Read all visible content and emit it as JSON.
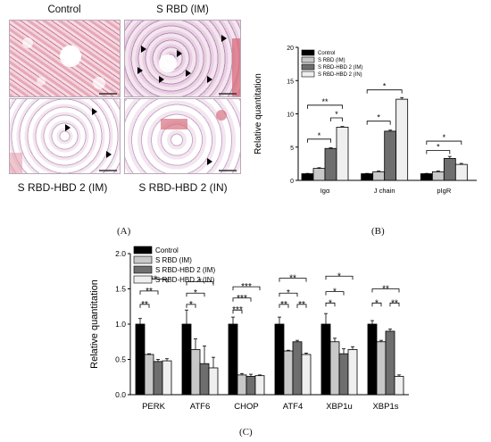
{
  "panel_a": {
    "label": "(A)",
    "images": [
      {
        "title": "Control",
        "arrows": 0
      },
      {
        "title": "S RBD (IM)",
        "arrows": 7
      },
      {
        "title": "S RBD-HBD 2 (IM)",
        "arrows": 3
      },
      {
        "title": "S RBD-HBD 2 (IN)",
        "arrows": 1
      }
    ]
  },
  "panel_b": {
    "label": "(B)"
  },
  "panel_c": {
    "label": "(C)"
  },
  "chart_data": [
    {
      "id": "B",
      "type": "bar",
      "ylabel": "Relative quantitation",
      "xlabel": "",
      "ylim": [
        0,
        20
      ],
      "yticks": [
        "0",
        "5",
        "10",
        "15",
        "20"
      ],
      "categories": [
        "Igα",
        "J chain",
        "pIgR"
      ],
      "series": [
        {
          "name": "Control",
          "color": "#000000",
          "values": [
            1.0,
            1.0,
            1.0
          ],
          "errors": [
            0.05,
            0.05,
            0.05
          ]
        },
        {
          "name": "S RBD (IM)",
          "color": "#c8c8c8",
          "values": [
            1.8,
            1.3,
            1.3
          ],
          "errors": [
            0.1,
            0.1,
            0.1
          ]
        },
        {
          "name": "S RBD-HBD 2 (IM)",
          "color": "#6e6e6e",
          "values": [
            4.8,
            7.4,
            3.3
          ],
          "errors": [
            0.1,
            0.15,
            0.3
          ]
        },
        {
          "name": "S RBD-HBD 2 (IN)",
          "color": "#efefef",
          "values": [
            8.0,
            12.2,
            2.4
          ],
          "errors": [
            0.1,
            0.25,
            0.15
          ]
        }
      ],
      "significance": [
        {
          "cat": 0,
          "from": 0,
          "to": 2,
          "label": "*",
          "y": 6.2
        },
        {
          "cat": 0,
          "from": 2,
          "to": 3,
          "label": "*",
          "y": 9.4
        },
        {
          "cat": 0,
          "from": 0,
          "to": 3,
          "label": "**",
          "y": 11.3
        },
        {
          "cat": 1,
          "from": 0,
          "to": 2,
          "label": "*",
          "y": 8.9
        },
        {
          "cat": 1,
          "from": 0,
          "to": 3,
          "label": "*",
          "y": 13.6
        },
        {
          "cat": 2,
          "from": 0,
          "to": 2,
          "label": "*",
          "y": 4.5
        },
        {
          "cat": 2,
          "from": 0,
          "to": 3,
          "label": "*",
          "y": 5.9
        }
      ],
      "legend": "top-left"
    },
    {
      "id": "C",
      "type": "bar",
      "ylabel": "Relative quantitation",
      "xlabel": "",
      "ylim": [
        0,
        2.0
      ],
      "yticks": [
        "0.0",
        "0.5",
        "1.0",
        "1.5",
        "2.0"
      ],
      "categories": [
        "PERK",
        "ATF6",
        "CHOP",
        "ATF4",
        "XBP1u",
        "XBP1s"
      ],
      "series": [
        {
          "name": "Control",
          "color": "#000000",
          "values": [
            1.0,
            1.0,
            1.0,
            1.0,
            1.0,
            1.0
          ],
          "errors": [
            0.08,
            0.2,
            0.1,
            0.1,
            0.15,
            0.05
          ]
        },
        {
          "name": "S RBD (IM)",
          "color": "#c8c8c8",
          "values": [
            0.57,
            0.64,
            0.28,
            0.62,
            0.75,
            0.75
          ],
          "errors": [
            0.01,
            0.15,
            0.02,
            0.01,
            0.05,
            0.02
          ]
        },
        {
          "name": "S RBD-HBD 2 (IM)",
          "color": "#6e6e6e",
          "values": [
            0.47,
            0.44,
            0.26,
            0.75,
            0.58,
            0.9
          ],
          "errors": [
            0.03,
            0.25,
            0.03,
            0.02,
            0.07,
            0.03
          ]
        },
        {
          "name": "S RBD-HBD 2 (IN)",
          "color": "#efefef",
          "values": [
            0.48,
            0.38,
            0.27,
            0.57,
            0.64,
            0.26
          ],
          "errors": [
            0.03,
            0.15,
            0.01,
            0.02,
            0.04,
            0.02
          ]
        }
      ],
      "significance": [
        {
          "cat": 0,
          "from": 0,
          "to": 1,
          "label": "**",
          "y": 1.28
        },
        {
          "cat": 0,
          "from": 0,
          "to": 2,
          "label": "**",
          "y": 1.47
        },
        {
          "cat": 0,
          "from": 0,
          "to": 3,
          "label": "**",
          "y": 1.64
        },
        {
          "cat": 1,
          "from": 0,
          "to": 1,
          "label": "*",
          "y": 1.28
        },
        {
          "cat": 1,
          "from": 0,
          "to": 2,
          "label": "*",
          "y": 1.44
        },
        {
          "cat": 1,
          "from": 0,
          "to": 3,
          "label": "*",
          "y": 1.6
        },
        {
          "cat": 2,
          "from": 0,
          "to": 1,
          "label": "***",
          "y": 1.2
        },
        {
          "cat": 2,
          "from": 0,
          "to": 2,
          "label": "***",
          "y": 1.37
        },
        {
          "cat": 2,
          "from": 0,
          "to": 3,
          "label": "***",
          "y": 1.53
        },
        {
          "cat": 3,
          "from": 0,
          "to": 1,
          "label": "**",
          "y": 1.28
        },
        {
          "cat": 3,
          "from": 0,
          "to": 2,
          "label": "*",
          "y": 1.44
        },
        {
          "cat": 3,
          "from": 0,
          "to": 3,
          "label": "**",
          "y": 1.65
        },
        {
          "cat": 3,
          "from": 2,
          "to": 3,
          "label": "**",
          "y": 1.28
        },
        {
          "cat": 4,
          "from": 0,
          "to": 1,
          "label": "*",
          "y": 1.3
        },
        {
          "cat": 4,
          "from": 0,
          "to": 2,
          "label": "*",
          "y": 1.46
        },
        {
          "cat": 4,
          "from": 0,
          "to": 3,
          "label": "*",
          "y": 1.68
        },
        {
          "cat": 5,
          "from": 0,
          "to": 1,
          "label": "*",
          "y": 1.3
        },
        {
          "cat": 5,
          "from": 0,
          "to": 3,
          "label": "**",
          "y": 1.5
        },
        {
          "cat": 5,
          "from": 2,
          "to": 3,
          "label": "**",
          "y": 1.3
        }
      ],
      "legend": "top-left"
    }
  ]
}
